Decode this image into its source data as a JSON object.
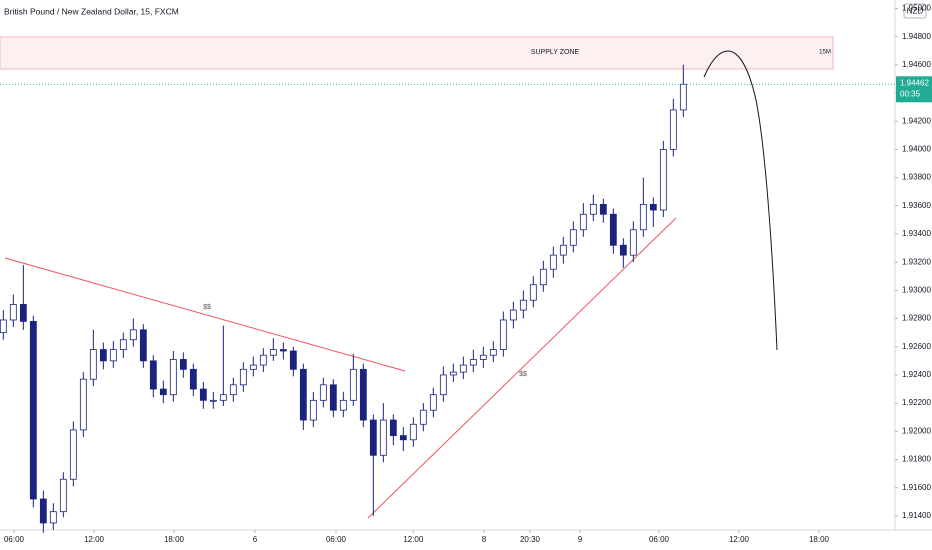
{
  "chart_data": {
    "type": "candlestick",
    "title": "British Pound / New Zealand Dollar, 15, FXCM",
    "currency": "NZD",
    "countdown": "00:35",
    "zone_label": "SUPPLY ZONE",
    "zone_timeframe": "15M",
    "annotations": [
      "$$",
      "$$"
    ],
    "up_color": "#ffffff",
    "down_color": "#1a237e",
    "last_price_color": "#22ab94",
    "grid": false,
    "x": [
      1,
      4,
      7,
      10,
      13,
      16,
      19,
      22,
      25,
      28,
      31,
      34,
      37,
      40,
      43,
      46,
      49,
      52,
      55,
      58,
      61,
      64,
      67,
      70,
      73,
      76,
      79,
      82,
      85,
      88,
      91,
      94,
      97,
      100,
      103,
      106,
      109,
      112,
      115,
      118,
      121,
      124,
      127,
      130,
      133,
      136,
      139,
      142,
      145,
      148,
      151,
      154,
      157,
      160,
      163,
      166,
      169,
      172,
      175,
      178,
      181,
      184,
      187,
      190,
      193,
      196,
      199,
      202,
      205
    ],
    "open": [
      1.927,
      1.9279,
      1.929,
      1.9278,
      1.9152,
      1.9135,
      1.9143,
      1.9166,
      1.9201,
      1.9237,
      1.9258,
      1.925,
      1.9258,
      1.9265,
      1.9272,
      1.925,
      1.923,
      1.9226,
      1.9251,
      1.9244,
      1.923,
      1.9222,
      1.9222,
      1.9226,
      1.9233,
      1.9244,
      1.9247,
      1.9254,
      1.9258,
      1.9257,
      1.9244,
      1.9208,
      1.9222,
      1.9233,
      1.9215,
      1.9222,
      1.9244,
      1.9208,
      1.9183,
      1.9208,
      1.9197,
      1.9194,
      1.9205,
      1.9215,
      1.9226,
      1.924,
      1.9242,
      1.9247,
      1.9251,
      1.9254,
      1.9258,
      1.9279,
      1.9286,
      1.9293,
      1.9304,
      1.9315,
      1.9325,
      1.9332,
      1.9343,
      1.9354,
      1.9361,
      1.9354,
      1.9332,
      1.9325,
      1.9343,
      1.9361,
      1.9357,
      1.94,
      1.9428
    ],
    "high": [
      1.9286,
      1.9297,
      1.9318,
      1.9282,
      1.9158,
      1.9149,
      1.9171,
      1.9207,
      1.9242,
      1.9272,
      1.9263,
      1.9264,
      1.927,
      1.928,
      1.9276,
      1.9254,
      1.9236,
      1.9257,
      1.9256,
      1.9248,
      1.9235,
      1.9228,
      1.9275,
      1.9238,
      1.9249,
      1.9253,
      1.9259,
      1.9266,
      1.9263,
      1.926,
      1.9248,
      1.9228,
      1.9238,
      1.9237,
      1.9228,
      1.9255,
      1.9248,
      1.9212,
      1.922,
      1.9212,
      1.9203,
      1.921,
      1.922,
      1.9231,
      1.9246,
      1.9248,
      1.9253,
      1.9258,
      1.926,
      1.9264,
      1.9285,
      1.9292,
      1.93,
      1.931,
      1.9321,
      1.9331,
      1.9338,
      1.9349,
      1.9362,
      1.9368,
      1.9365,
      1.9358,
      1.9337,
      1.9349,
      1.938,
      1.9366,
      1.9406,
      1.9436,
      1.946
    ],
    "low": [
      1.9265,
      1.9274,
      1.9272,
      1.9146,
      1.9128,
      1.913,
      1.9139,
      1.9161,
      1.9196,
      1.9232,
      1.9244,
      1.9245,
      1.9252,
      1.926,
      1.9245,
      1.9224,
      1.922,
      1.9221,
      1.9238,
      1.9225,
      1.9216,
      1.9216,
      1.9218,
      1.9221,
      1.9228,
      1.9239,
      1.9242,
      1.925,
      1.9251,
      1.9239,
      1.9201,
      1.9203,
      1.9217,
      1.921,
      1.921,
      1.9218,
      1.9203,
      1.914,
      1.9178,
      1.919,
      1.9186,
      1.9189,
      1.92,
      1.921,
      1.9221,
      1.9235,
      1.9237,
      1.9242,
      1.9245,
      1.9249,
      1.9253,
      1.9273,
      1.928,
      1.9288,
      1.9299,
      1.9309,
      1.9319,
      1.9327,
      1.9338,
      1.9349,
      1.9348,
      1.9326,
      1.9316,
      1.932,
      1.9338,
      1.9345,
      1.9352,
      1.9395,
      1.9423
    ],
    "close": [
      1.9279,
      1.929,
      1.9278,
      1.9152,
      1.9135,
      1.9143,
      1.9166,
      1.9201,
      1.9237,
      1.9258,
      1.925,
      1.9258,
      1.9265,
      1.9272,
      1.925,
      1.923,
      1.9226,
      1.9251,
      1.9244,
      1.923,
      1.9222,
      1.9222,
      1.9226,
      1.9233,
      1.9244,
      1.9247,
      1.9254,
      1.9258,
      1.9257,
      1.9244,
      1.9208,
      1.9222,
      1.9233,
      1.9215,
      1.9222,
      1.9244,
      1.9208,
      1.9183,
      1.9208,
      1.9197,
      1.9194,
      1.9205,
      1.9215,
      1.9226,
      1.924,
      1.9242,
      1.9247,
      1.9251,
      1.9254,
      1.9258,
      1.9279,
      1.9286,
      1.9293,
      1.9304,
      1.9315,
      1.9325,
      1.9332,
      1.9343,
      1.9354,
      1.9361,
      1.9354,
      1.9332,
      1.9325,
      1.9343,
      1.9361,
      1.9357,
      1.94,
      1.9428,
      1.94462
    ],
    "xlim": [
      0,
      268.5
    ],
    "ylim": [
      1.913,
      1.9506
    ],
    "xticks": [
      {
        "value": 4.2,
        "label": "06:00"
      },
      {
        "value": 28.2,
        "label": "12:00"
      },
      {
        "value": 52.2,
        "label": "18:00"
      },
      {
        "value": 76.5,
        "label": "6"
      },
      {
        "value": 100.8,
        "label": "06:00"
      },
      {
        "value": 124,
        "label": "12:00"
      },
      {
        "value": 145.2,
        "label": "8"
      },
      {
        "value": 159,
        "label": "20:30"
      },
      {
        "value": 174,
        "label": "9"
      },
      {
        "value": 197.7,
        "label": "06:00"
      },
      {
        "value": 221.7,
        "label": "12:00"
      },
      {
        "value": 245.7,
        "label": "18:00"
      }
    ],
    "yticks": [
      {
        "value": 1.95,
        "label": "1.95000"
      },
      {
        "value": 1.948,
        "label": "1.94800"
      },
      {
        "value": 1.946,
        "label": "1.94600"
      },
      {
        "value": 1.944,
        "label": "1.94400"
      },
      {
        "value": 1.942,
        "label": "1.94200"
      },
      {
        "value": 1.94,
        "label": "1.94000"
      },
      {
        "value": 1.938,
        "label": "1.93800"
      },
      {
        "value": 1.936,
        "label": "1.93600"
      },
      {
        "value": 1.934,
        "label": "1.93400"
      },
      {
        "value": 1.932,
        "label": "1.93200"
      },
      {
        "value": 1.93,
        "label": "1.93000"
      },
      {
        "value": 1.928,
        "label": "1.92800"
      },
      {
        "value": 1.926,
        "label": "1.92600"
      },
      {
        "value": 1.924,
        "label": "1.92400"
      },
      {
        "value": 1.922,
        "label": "1.92200"
      },
      {
        "value": 1.92,
        "label": "1.92000"
      },
      {
        "value": 1.918,
        "label": "1.91800"
      },
      {
        "value": 1.916,
        "label": "1.91600"
      },
      {
        "value": 1.914,
        "label": "1.91400"
      }
    ]
  }
}
